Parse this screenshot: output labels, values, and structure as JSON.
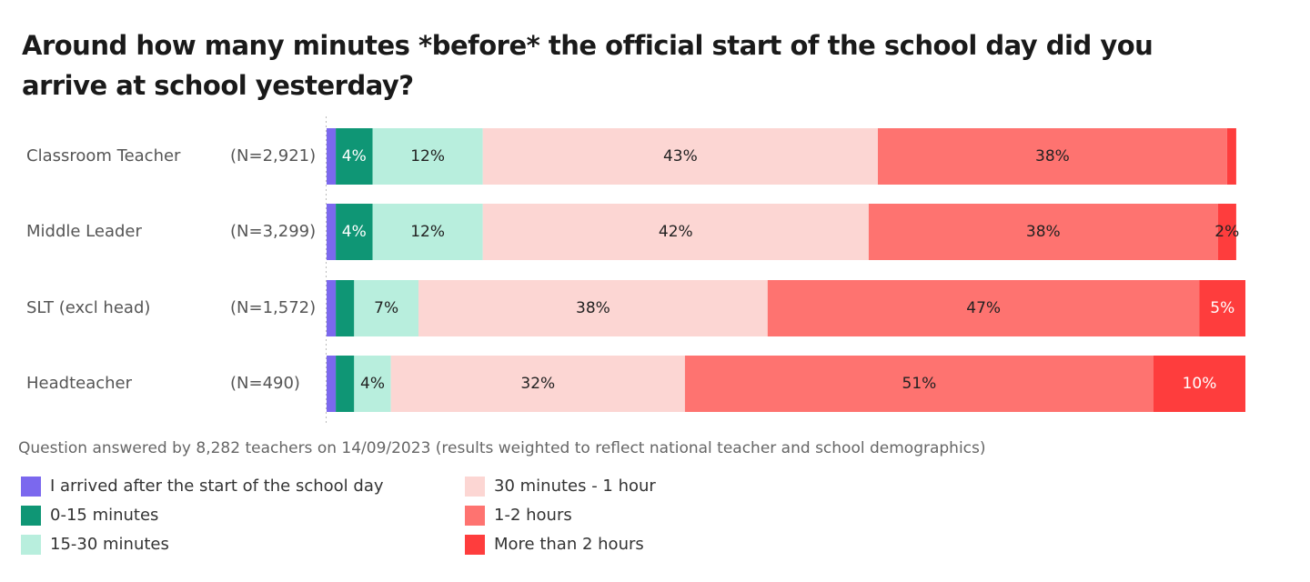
{
  "chart_data": {
    "type": "stacked-bar-horizontal",
    "title": "Around how many minutes *before* the official start of the school day did you arrive at school yesterday?",
    "categories": [
      "Classroom Teacher",
      "Middle Leader",
      "SLT (excl head)",
      "Headteacher"
    ],
    "sample_sizes": [
      "(N=2,921)",
      "(N=3,299)",
      "(N=1,572)",
      "(N=490)"
    ],
    "xlim": [
      0,
      100
    ],
    "series": [
      {
        "name": "I arrived after the start of the school day",
        "color": "#7b68ee",
        "values": [
          1,
          1,
          1,
          1
        ],
        "value_labels": [
          null,
          null,
          null,
          null
        ]
      },
      {
        "name": "0-15 minutes",
        "color": "#0f9675",
        "values": [
          4,
          4,
          2,
          2
        ],
        "value_labels": [
          "4%",
          "4%",
          null,
          null
        ]
      },
      {
        "name": "15-30 minutes",
        "color": "#b8eedd",
        "values": [
          12,
          12,
          7,
          4
        ],
        "value_labels": [
          "12%",
          "12%",
          "7%",
          "4%"
        ]
      },
      {
        "name": "30 minutes - 1 hour",
        "color": "#fcd6d3",
        "values": [
          43,
          42,
          38,
          32
        ],
        "value_labels": [
          "43%",
          "42%",
          "38%",
          "32%"
        ]
      },
      {
        "name": "1-2 hours",
        "color": "#fe7370",
        "values": [
          38,
          38,
          47,
          51
        ],
        "value_labels": [
          "38%",
          "38%",
          "47%",
          "51%"
        ]
      },
      {
        "name": "More than 2 hours",
        "color": "#fe3d3d",
        "values": [
          1,
          2,
          5,
          10
        ],
        "value_labels": [
          null,
          "2%",
          "5%",
          "10%"
        ]
      }
    ],
    "footnote": "Question answered by 8,282 teachers on 14/09/2023 (results weighted to reflect national teacher and school demographics)"
  }
}
